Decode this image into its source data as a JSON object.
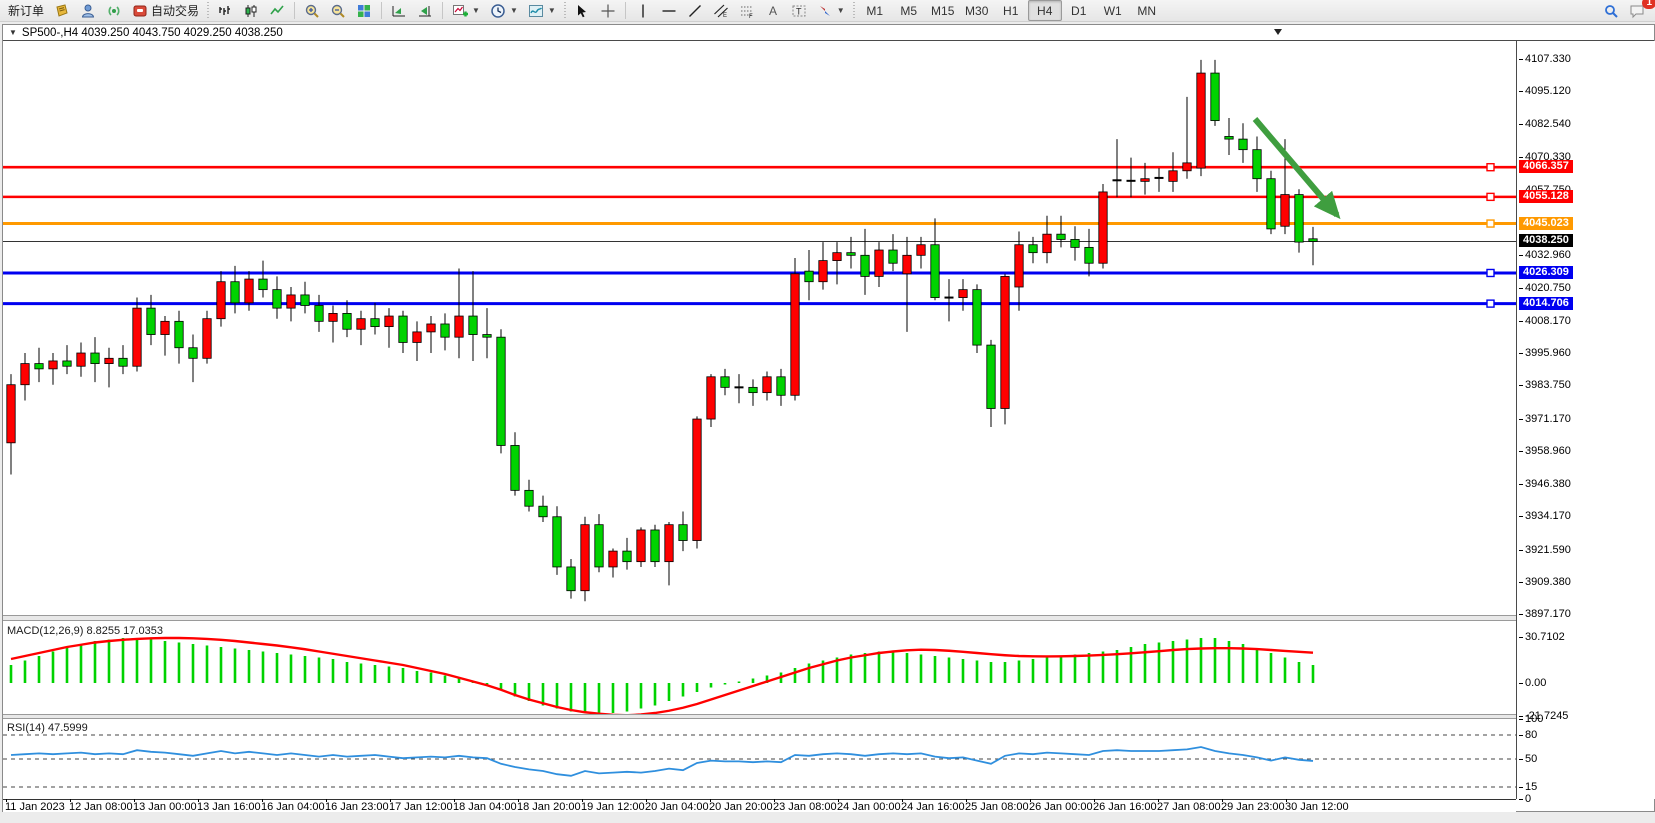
{
  "toolbar": {
    "new_order_label": "新订单",
    "auto_trading_label": "自动交易",
    "timeframes": [
      "M1",
      "M5",
      "M15",
      "M30",
      "H1",
      "H4",
      "D1",
      "W1",
      "MN"
    ],
    "active_timeframe": "H4",
    "notification_badge": "1"
  },
  "chart_header": {
    "title": "SP500-,H4  4039.250 4043.750 4029.250 4038.250"
  },
  "price_axis": {
    "ticks": [
      "4107.330",
      "4095.120",
      "4082.540",
      "4070.330",
      "4057.750",
      "4032.960",
      "4020.750",
      "4008.170",
      "3995.960",
      "3983.750",
      "3971.170",
      "3958.960",
      "3946.380",
      "3934.170",
      "3921.590",
      "3909.380",
      "3897.170"
    ]
  },
  "hlines": [
    {
      "price": 4066.357,
      "label": "4066.357",
      "color": "#FF0000",
      "width": 2.6
    },
    {
      "price": 4055.128,
      "label": "4055.128",
      "color": "#FF0000",
      "width": 2.6
    },
    {
      "price": 4045.023,
      "label": "4045.023",
      "color": "#FF9900",
      "width": 3
    },
    {
      "price": 4026.309,
      "label": "4026.309",
      "color": "#0000F0",
      "width": 3
    },
    {
      "price": 4014.706,
      "label": "4014.706",
      "color": "#0000F0",
      "width": 3
    }
  ],
  "current_price": {
    "price": 4038.25,
    "label": "4038.250",
    "bg": "#000000"
  },
  "time_axis": [
    "11 Jan 2023",
    "12 Jan 08:00",
    "13 Jan 00:00",
    "13 Jan 16:00",
    "16 Jan 04:00",
    "16 Jan 23:00",
    "17 Jan 12:00",
    "18 Jan 04:00",
    "18 Jan 20:00",
    "19 Jan 12:00",
    "20 Jan 04:00",
    "20 Jan 20:00",
    "23 Jan 08:00",
    "24 Jan 00:00",
    "24 Jan 16:00",
    "25 Jan 08:00",
    "26 Jan 00:00",
    "26 Jan 16:00",
    "27 Jan 08:00",
    "29 Jan 23:00",
    "30 Jan 12:00"
  ],
  "macd": {
    "label": "MACD(12,26,9) 8.8255 17.0353",
    "axis_ticks": [
      "30.7102",
      "0.00",
      "-21.7245"
    ],
    "hist_color": "#00D200",
    "signal_color": "#FF0000",
    "histogram": [
      12,
      15,
      18,
      21,
      24,
      26,
      28,
      29,
      30,
      30,
      29,
      28,
      27,
      26,
      25,
      24,
      23,
      22,
      21,
      20,
      19,
      18,
      17,
      16,
      14,
      13,
      12,
      11,
      10,
      8,
      7,
      5,
      3,
      1,
      -2,
      -5,
      -9,
      -12,
      -15,
      -17,
      -19,
      -20,
      -21,
      -20,
      -19,
      -17,
      -15,
      -12,
      -9,
      -6,
      -3,
      -1,
      1,
      3,
      5,
      7,
      10,
      13,
      15,
      17,
      19,
      20,
      21,
      21,
      20,
      19,
      18,
      17,
      16,
      15,
      14,
      14,
      15,
      16,
      17,
      18,
      19,
      20,
      21,
      22,
      24,
      26,
      27,
      28,
      29,
      30,
      30,
      28,
      26,
      23,
      20,
      17,
      14,
      12
    ],
    "signal": [
      16,
      18,
      20,
      22,
      24,
      25.5,
      27,
      28,
      28.8,
      29.4,
      29.8,
      30,
      30,
      29.8,
      29.4,
      28.8,
      28,
      27,
      26,
      25,
      23.8,
      22.5,
      21,
      19.5,
      18,
      16.5,
      15,
      13.5,
      12,
      10,
      8,
      6,
      3.5,
      1,
      -1.5,
      -4.5,
      -8,
      -11,
      -13.5,
      -16,
      -18,
      -19.5,
      -20.5,
      -21.2,
      -21.5,
      -21,
      -20,
      -18.5,
      -16.5,
      -14,
      -11,
      -8,
      -5,
      -2,
      1,
      4,
      7,
      10,
      12.5,
      15,
      17,
      18.5,
      20,
      21,
      21.8,
      22.2,
      22,
      21.5,
      20.8,
      20,
      19.2,
      18.5,
      18,
      17.8,
      17.7,
      17.8,
      18,
      18.3,
      18.7,
      19.2,
      19.8,
      20.5,
      21.2,
      22,
      22.6,
      23,
      23.2,
      23.2,
      23,
      22.6,
      22,
      21.4,
      20.8,
      20.2
    ]
  },
  "rsi": {
    "label": "RSI(14) 47.5999",
    "axis_ticks": [
      "100",
      "80",
      "50",
      "15",
      "0"
    ],
    "levels": [
      80,
      50,
      15
    ],
    "line_color": "#2F8FDE",
    "values": [
      55,
      56,
      57,
      56,
      57,
      58,
      56,
      57,
      56,
      61,
      59,
      58,
      56,
      54,
      57,
      60,
      57,
      59,
      57,
      55,
      57,
      55,
      53,
      55,
      53,
      54,
      55,
      53,
      51,
      52,
      53,
      52,
      54,
      52,
      51,
      44,
      40,
      37,
      35,
      31,
      29,
      35,
      32,
      33,
      34,
      33,
      35,
      38,
      36,
      45,
      48,
      47,
      47,
      46,
      47,
      46,
      55,
      54,
      56,
      57,
      56,
      54,
      56,
      57,
      56,
      57,
      53,
      51,
      52,
      48,
      44,
      54,
      57,
      56,
      58,
      57,
      56,
      55,
      60,
      61,
      60,
      60,
      60,
      61,
      62,
      65,
      60,
      57,
      55,
      52,
      48,
      52,
      49,
      47.6
    ]
  },
  "chart_data": {
    "type": "candlestick",
    "symbol": "SP500-",
    "timeframe": "H4",
    "up_color": "#FE0000",
    "down_color": "#00D200",
    "ylim": [
      3897.17,
      4107.33
    ],
    "candles": [
      [
        3962,
        3988,
        3950,
        3984
      ],
      [
        3984,
        3996,
        3978,
        3992
      ],
      [
        3992,
        3998,
        3985,
        3990
      ],
      [
        3990,
        3996,
        3984,
        3993
      ],
      [
        3993,
        3999,
        3988,
        3991
      ],
      [
        3991,
        4000,
        3987,
        3996
      ],
      [
        3996,
        4002,
        3985,
        3992
      ],
      [
        3992,
        3998,
        3983,
        3994
      ],
      [
        3994,
        3999,
        3988,
        3991
      ],
      [
        3991,
        4017,
        3989,
        4013
      ],
      [
        4013,
        4018,
        3999,
        4003
      ],
      [
        4003,
        4010,
        3995,
        4008
      ],
      [
        4008,
        4012,
        3992,
        3998
      ],
      [
        3998,
        4003,
        3985,
        3994
      ],
      [
        3994,
        4012,
        3992,
        4009
      ],
      [
        4009,
        4027,
        4006,
        4023
      ],
      [
        4023,
        4029,
        4011,
        4015
      ],
      [
        4015,
        4027,
        4012,
        4024
      ],
      [
        4024,
        4031,
        4017,
        4020
      ],
      [
        4020,
        4025,
        4009,
        4013
      ],
      [
        4013,
        4021,
        4008,
        4018
      ],
      [
        4018,
        4023,
        4011,
        4014
      ],
      [
        4014,
        4018,
        4004,
        4008
      ],
      [
        4008,
        4014,
        4000,
        4011
      ],
      [
        4011,
        4016,
        4002,
        4005
      ],
      [
        4005,
        4012,
        3999,
        4009
      ],
      [
        4009,
        4015,
        4003,
        4006
      ],
      [
        4006,
        4013,
        3998,
        4010
      ],
      [
        4010,
        4012,
        3996,
        4000
      ],
      [
        4000,
        4008,
        3993,
        4004
      ],
      [
        4004,
        4010,
        3996,
        4007
      ],
      [
        4007,
        4011,
        3997,
        4002
      ],
      [
        4002,
        4028,
        3994,
        4010
      ],
      [
        4010,
        4027,
        3993,
        4003
      ],
      [
        4003,
        4013,
        3994,
        4002
      ],
      [
        4002,
        4005,
        3958,
        3961
      ],
      [
        3961,
        3966,
        3942,
        3944
      ],
      [
        3944,
        3948,
        3936,
        3938
      ],
      [
        3938,
        3942,
        3932,
        3934
      ],
      [
        3934,
        3938,
        3912,
        3915
      ],
      [
        3915,
        3918,
        3903,
        3906
      ],
      [
        3906,
        3934,
        3902,
        3931
      ],
      [
        3931,
        3935,
        3913,
        3915
      ],
      [
        3915,
        3922,
        3911,
        3921
      ],
      [
        3921,
        3926,
        3914,
        3917
      ],
      [
        3917,
        3930,
        3915,
        3929
      ],
      [
        3929,
        3931,
        3915,
        3917
      ],
      [
        3917,
        3932,
        3908,
        3931
      ],
      [
        3931,
        3936,
        3921,
        3925
      ],
      [
        3925,
        3972,
        3922,
        3971
      ],
      [
        3971,
        3988,
        3968,
        3987
      ],
      [
        3987,
        3990,
        3980,
        3983
      ],
      [
        3983,
        3988,
        3977,
        3983
      ],
      [
        3983,
        3986,
        3976,
        3981
      ],
      [
        3981,
        3989,
        3978,
        3987
      ],
      [
        3987,
        3990,
        3976,
        3980
      ],
      [
        3980,
        4032,
        3978,
        4026
      ],
      [
        4027,
        4035,
        4016,
        4023
      ],
      [
        4023,
        4038,
        4020,
        4031
      ],
      [
        4031,
        4038,
        4022,
        4034
      ],
      [
        4034,
        4040,
        4028,
        4033
      ],
      [
        4033,
        4043,
        4018,
        4025
      ],
      [
        4025,
        4038,
        4021,
        4035
      ],
      [
        4035,
        4041,
        4027,
        4030
      ],
      [
        4026,
        4040,
        4004,
        4033
      ],
      [
        4033,
        4040,
        4028,
        4037
      ],
      [
        4037,
        4047,
        4016,
        4017
      ],
      [
        4017,
        4024,
        4008,
        4017
      ],
      [
        4017,
        4024,
        4012,
        4020
      ],
      [
        4020,
        4022,
        3996,
        3999
      ],
      [
        3999,
        4001,
        3968,
        3975
      ],
      [
        3975,
        4026,
        3969,
        4025
      ],
      [
        4021,
        4042,
        4012,
        4037
      ],
      [
        4037,
        4040,
        4030,
        4034
      ],
      [
        4034,
        4048,
        4030,
        4041
      ],
      [
        4041,
        4048,
        4036,
        4039
      ],
      [
        4039,
        4044,
        4031,
        4036
      ],
      [
        4036,
        4043,
        4025,
        4030
      ],
      [
        4030,
        4060,
        4028,
        4057
      ],
      [
        4061,
        4077,
        4055,
        4061.4
      ],
      [
        4061,
        4070,
        4055,
        4061.2
      ],
      [
        4061,
        4068,
        4056,
        4062
      ],
      [
        4062,
        4066,
        4057,
        4062.3
      ],
      [
        4061,
        4072,
        4057,
        4065
      ],
      [
        4065,
        4093,
        4062,
        4068
      ],
      [
        4066,
        4107,
        4063,
        4102
      ],
      [
        4102,
        4107,
        4082,
        4084
      ],
      [
        4078,
        4085,
        4071,
        4077
      ],
      [
        4077,
        4083,
        4068,
        4073
      ],
      [
        4073,
        4078,
        4057,
        4062
      ],
      [
        4062,
        4065,
        4041,
        4043
      ],
      [
        4044,
        4077,
        4041,
        4056
      ],
      [
        4056,
        4058,
        4034,
        4038
      ],
      [
        4039.25,
        4043.75,
        4029.25,
        4038.25
      ]
    ]
  },
  "annotation_arrow": {
    "color": "#3F9E3F"
  }
}
